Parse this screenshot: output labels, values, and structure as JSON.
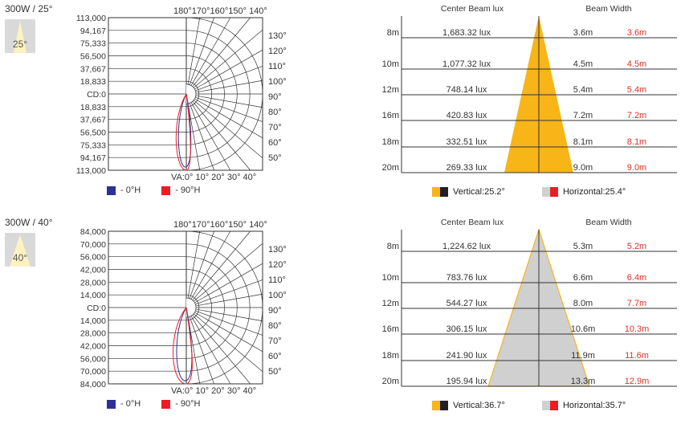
{
  "colors": {
    "blue": "#2e3192",
    "red": "#ed1c24",
    "orange": "#f7b518",
    "gray_fill": "#d0d0d0",
    "dark": "#231f20",
    "red_text": "#e0302a"
  },
  "legend_polar": {
    "h0": "- 0°H",
    "h90": "- 90°H"
  },
  "panels": [
    {
      "title": "300W / 25°",
      "icon_deg": "25°",
      "polar": {
        "cd_labels": [
          "113,000",
          "94,167",
          "75,333",
          "56,500",
          "37,667",
          "18,833",
          "CD:0",
          "18,833",
          "37,667",
          "56,500",
          "75,333",
          "94,167",
          "113,000"
        ],
        "top_angles": "180°170°160°150° 140°",
        "bottom_angles": "VA:0° 10° 20° 30° 40°",
        "right_angles": [
          "130°",
          "120°",
          "110°",
          "100°",
          "90°",
          "80°",
          "70°",
          "60°",
          "50°"
        ]
      },
      "beam": {
        "header_lux": "Center Beam lux",
        "header_width": "Beam Width",
        "rows": [
          {
            "d": "8m",
            "lux": "1,683.32 lux",
            "w1": "3.6m",
            "w2": "3.6m"
          },
          {
            "d": "10m",
            "lux": "1,077.32 lux",
            "w1": "4.5m",
            "w2": "4.5m"
          },
          {
            "d": "12m",
            "lux": "748.14 lux",
            "w1": "5.4m",
            "w2": "5.4m"
          },
          {
            "d": "16m",
            "lux": "420.83 lux",
            "w1": "7.2m",
            "w2": "7.2m"
          },
          {
            "d": "18m",
            "lux": "332.51 lux",
            "w1": "8.1m",
            "w2": "8.1m"
          },
          {
            "d": "20m",
            "lux": "269.33 lux",
            "w1": "9.0m",
            "w2": "9.0m"
          }
        ],
        "cone": "orange",
        "vertical": "Vertical:25.2°",
        "horizontal": "Horizontal:25.4°"
      }
    },
    {
      "title": "300W / 40°",
      "icon_deg": "40°",
      "polar": {
        "cd_labels": [
          "84,000",
          "70,000",
          "56,000",
          "42,000",
          "28,000",
          "14,000",
          "CD:0",
          "14,000",
          "28,000",
          "42,000",
          "56,000",
          "70,000",
          "84,000"
        ],
        "top_angles": "180°170°160°150° 140°",
        "bottom_angles": "VA:0° 10° 20° 30° 40°",
        "right_angles": [
          "130°",
          "120°",
          "110°",
          "100°",
          "90°",
          "80°",
          "70°",
          "60°",
          "50°"
        ]
      },
      "beam": {
        "header_lux": "Center Beam lux",
        "header_width": "Beam Width",
        "rows": [
          {
            "d": "8m",
            "lux": "1,224.62 lux",
            "w1": "5.3m",
            "w2": "5.2m"
          },
          {
            "d": "10m",
            "lux": "783.76 lux",
            "w1": "6.6m",
            "w2": "6.4m"
          },
          {
            "d": "12m",
            "lux": "544.27 lux",
            "w1": "8.0m",
            "w2": "7.7m"
          },
          {
            "d": "16m",
            "lux": "306.15 lux",
            "w1": "10.6m",
            "w2": "10.3m"
          },
          {
            "d": "18m",
            "lux": "241.90 lux",
            "w1": "11.9m",
            "w2": "11.6m"
          },
          {
            "d": "20m",
            "lux": "195.94 lux",
            "w1": "13.3m",
            "w2": "12.9m"
          }
        ],
        "cone": "gray",
        "vertical": "Vertical:36.7°",
        "horizontal": "Horizontal:35.7°"
      }
    }
  ]
}
